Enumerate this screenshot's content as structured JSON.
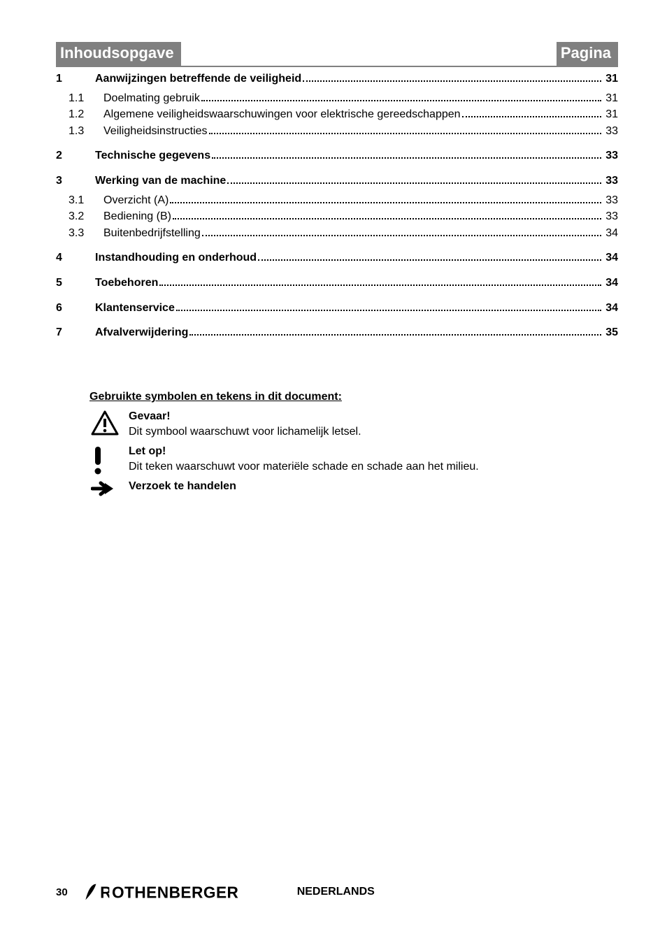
{
  "header": {
    "left": "Inhoudsopgave",
    "right": "Pagina"
  },
  "colors": {
    "header_bg": "#808080",
    "header_fg": "#ffffff",
    "text": "#000000",
    "leader": "#000000"
  },
  "typography": {
    "header_fontsize": 22,
    "body_fontsize": 16,
    "font_family": "Arial"
  },
  "toc": [
    {
      "level": 1,
      "num": "1",
      "title": "Aanwijzingen betreffende de veiligheid",
      "page": "31"
    },
    {
      "level": 2,
      "num": "1.1",
      "title": "Doelmating gebruik",
      "page": "31"
    },
    {
      "level": 2,
      "num": "1.2",
      "title": "Algemene veiligheidswaarschuwingen voor elektrische gereedschappen",
      "page": "31"
    },
    {
      "level": 2,
      "num": "1.3",
      "title": "Veiligheidsinstructies",
      "page": "33"
    },
    {
      "level": 1,
      "num": "2",
      "title": "Technische gegevens",
      "page": "33"
    },
    {
      "level": 1,
      "num": "3",
      "title": "Werking van de machine",
      "page": "33"
    },
    {
      "level": 2,
      "num": "3.1",
      "title": "Overzicht (A)",
      "page": "33"
    },
    {
      "level": 2,
      "num": "3.2",
      "title": "Bediening (B)",
      "page": "33"
    },
    {
      "level": 2,
      "num": "3.3",
      "title": "Buitenbedrijfstelling",
      "page": "34"
    },
    {
      "level": 1,
      "num": "4",
      "title": "Instandhouding en onderhoud",
      "page": "34"
    },
    {
      "level": 1,
      "num": "5",
      "title": "Toebehoren",
      "page": "34"
    },
    {
      "level": 1,
      "num": "6",
      "title": "Klantenservice",
      "page": "34"
    },
    {
      "level": 1,
      "num": "7",
      "title": "Afvalverwijdering",
      "page": "35"
    }
  ],
  "symbols": {
    "heading": "Gebruikte symbolen en tekens in dit document:",
    "items": [
      {
        "icon": "warning-triangle",
        "title": "Gevaar!",
        "desc": "Dit symbool waarschuwt voor lichamelijk letsel."
      },
      {
        "icon": "exclamation",
        "title": "Let op!",
        "desc": "Dit teken waarschuwt voor materiële schade en schade aan het milieu."
      },
      {
        "icon": "arrow-right",
        "title": "Verzoek te handelen",
        "desc": ""
      }
    ]
  },
  "footer": {
    "page_number": "30",
    "logo_text": "ROTHENBERGER",
    "language": "NEDERLANDS"
  }
}
